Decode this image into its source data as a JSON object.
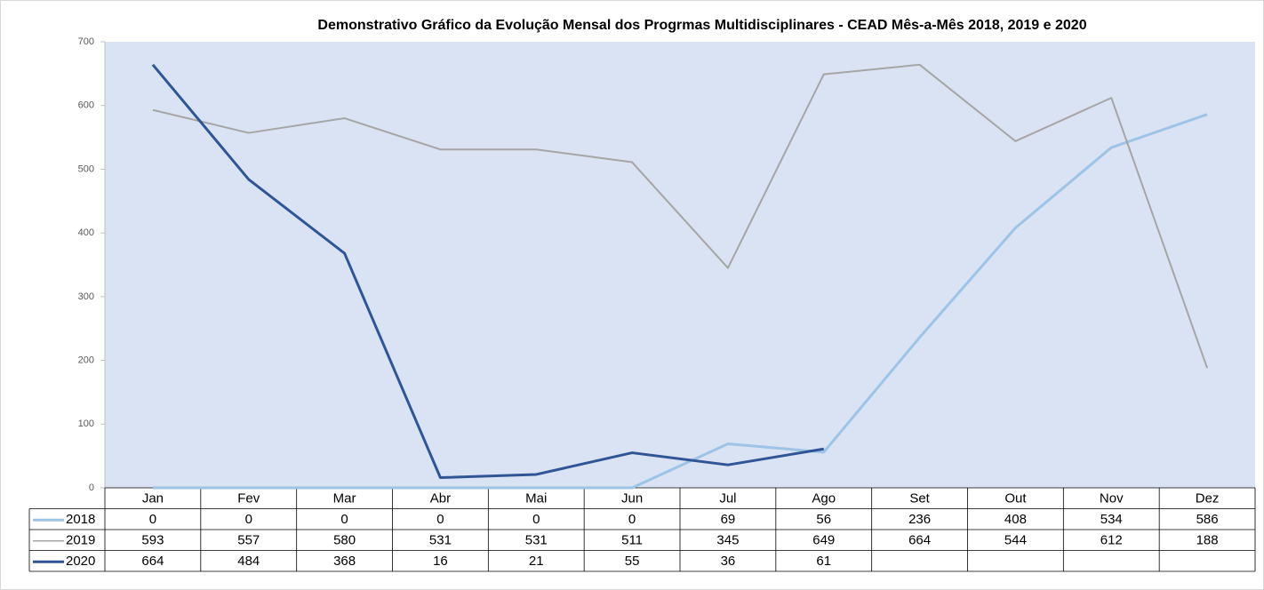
{
  "chart_data": {
    "type": "line",
    "title": "Demonstrativo Gráfico da Evolução Mensal dos Progrmas Multidisciplinares - CEAD Mês-a-Mês 2018, 2019 e 2020",
    "categories": [
      "Jan",
      "Fev",
      "Mar",
      "Abr",
      "Mai",
      "Jun",
      "Jul",
      "Ago",
      "Set",
      "Out",
      "Nov",
      "Dez"
    ],
    "series": [
      {
        "name": "2018",
        "color": "#9dc3e6",
        "values": [
          0,
          0,
          0,
          0,
          0,
          0,
          69,
          56,
          236,
          408,
          534,
          586
        ]
      },
      {
        "name": "2019",
        "color": "#a5a5a5",
        "values": [
          593,
          557,
          580,
          531,
          531,
          511,
          345,
          649,
          664,
          544,
          612,
          188
        ]
      },
      {
        "name": "2020",
        "color": "#2f5597",
        "values": [
          664,
          484,
          368,
          16,
          21,
          55,
          36,
          61,
          null,
          null,
          null,
          null
        ]
      }
    ],
    "ylim": [
      0,
      700
    ],
    "yticks": [
      0,
      100,
      200,
      300,
      400,
      500,
      600,
      700
    ]
  }
}
